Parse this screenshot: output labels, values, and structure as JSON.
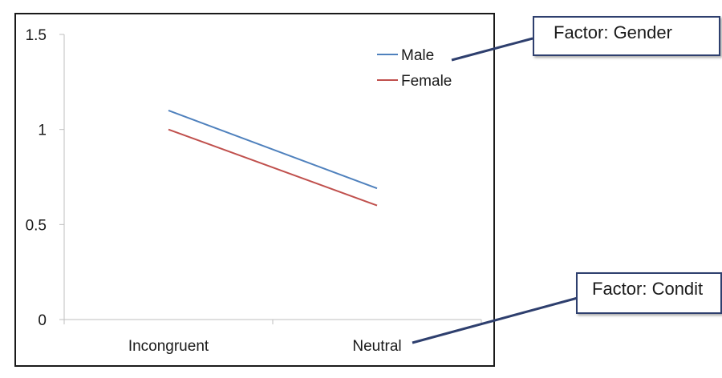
{
  "chart_data": {
    "type": "line",
    "categories": [
      "Incongruent",
      "Neutral"
    ],
    "series": [
      {
        "name": "Male",
        "values": [
          1.1,
          0.69
        ],
        "color": "#4f81bd"
      },
      {
        "name": "Female",
        "values": [
          1.0,
          0.6
        ],
        "color": "#c0504d"
      }
    ],
    "ylim": [
      0,
      1.5
    ],
    "yticks": [
      "0",
      "0.5",
      "1",
      "1.5"
    ],
    "grid": false,
    "legend": "top-right"
  },
  "annotations": {
    "gender": "Factor: Gender",
    "condition": "Factor: Condit"
  }
}
